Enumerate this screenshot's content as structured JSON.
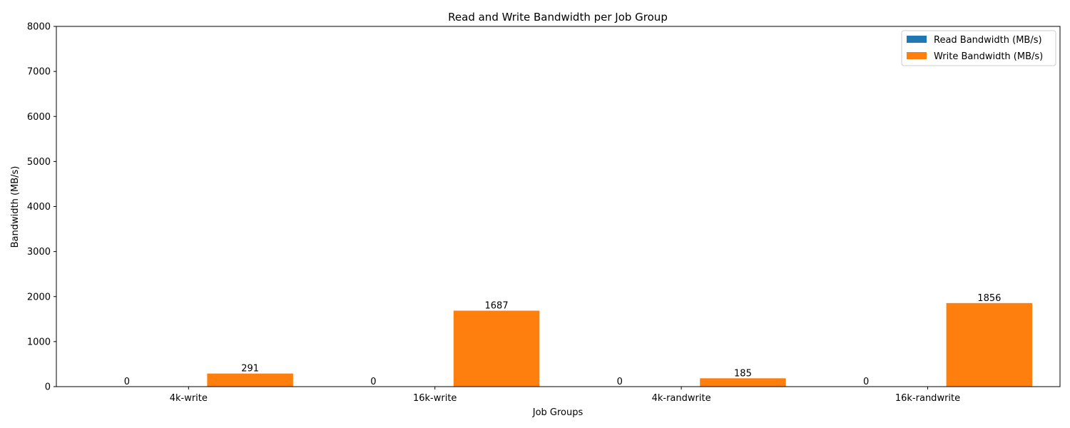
{
  "chart_data": {
    "type": "bar",
    "title": "Read and Write Bandwidth per Job Group",
    "xlabel": "Job Groups",
    "ylabel": "Bandwidth (MB/s)",
    "categories": [
      "4k-write",
      "16k-write",
      "4k-randwrite",
      "16k-randwrite"
    ],
    "series": [
      {
        "name": "Read Bandwidth (MB/s)",
        "values": [
          0,
          0,
          0,
          0
        ],
        "color": "#1f77b4"
      },
      {
        "name": "Write Bandwidth (MB/s)",
        "values": [
          291,
          1687,
          185,
          1856
        ],
        "color": "#ff7f0e"
      }
    ],
    "ylim": [
      0,
      8000
    ],
    "yticks": [
      0,
      1000,
      2000,
      3000,
      4000,
      5000,
      6000,
      7000,
      8000
    ],
    "grid": false,
    "legend_position": "top-right"
  }
}
